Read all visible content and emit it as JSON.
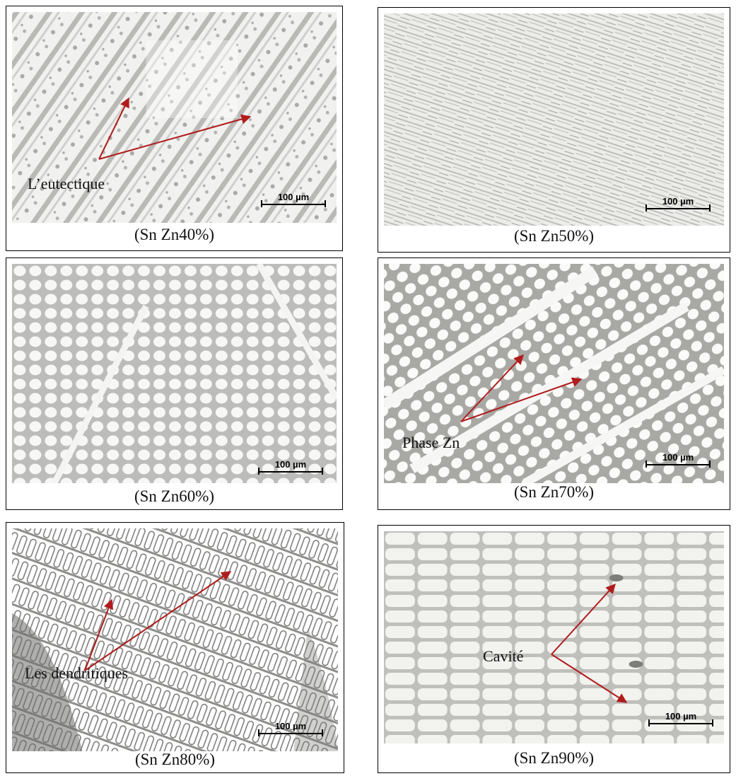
{
  "scale_label": "100 µm",
  "arrow_color": "#b01c1c",
  "panels": [
    {
      "caption": "(Sn Zn40%)",
      "annotation": "L’eutectique",
      "pattern": "needles-diagonal"
    },
    {
      "caption": "(Sn Zn50%)",
      "annotation": "",
      "pattern": "lamellar-striations"
    },
    {
      "caption": "(Sn Zn60%)",
      "annotation": "",
      "pattern": "cellular-network"
    },
    {
      "caption": "(Sn Zn70%)",
      "annotation": "Phase Zn",
      "pattern": "cellular-diagonal"
    },
    {
      "caption": "(Sn Zn80%)",
      "annotation": "Les dendritiques",
      "pattern": "dendrites"
    },
    {
      "caption": "(Sn Zn90%)",
      "annotation": "Cavité",
      "pattern": "elongated-grains"
    }
  ]
}
